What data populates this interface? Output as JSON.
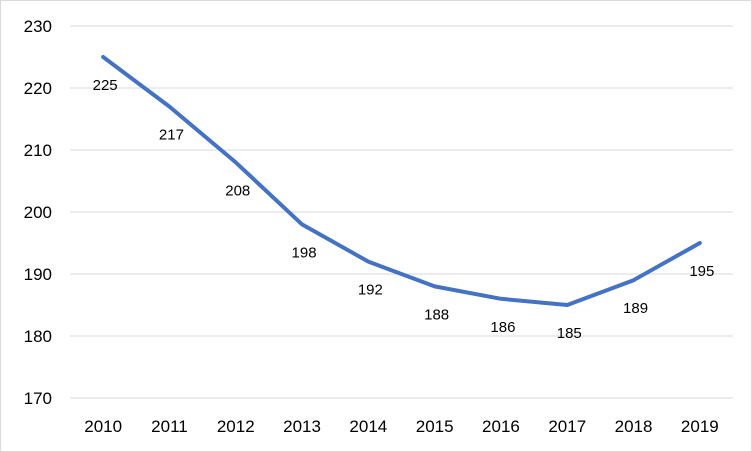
{
  "chart_data": {
    "type": "line",
    "title": "",
    "xlabel": "",
    "ylabel": "",
    "categories": [
      "2010",
      "2011",
      "2012",
      "2013",
      "2014",
      "2015",
      "2016",
      "2017",
      "2018",
      "2019"
    ],
    "series": [
      {
        "values": [
          225,
          217,
          208,
          198,
          192,
          188,
          186,
          185,
          189,
          195
        ],
        "color": "#4472C4"
      }
    ],
    "data_labels": [
      "225",
      "217",
      "208",
      "198",
      "192",
      "188",
      "186",
      "185",
      "189",
      "195"
    ],
    "y_ticks": [
      "170",
      "180",
      "190",
      "200",
      "210",
      "220",
      "230"
    ],
    "ylim": [
      170,
      230
    ],
    "grid": "horizontal",
    "legend": "none",
    "gridline_color": "#d9d9d9"
  }
}
